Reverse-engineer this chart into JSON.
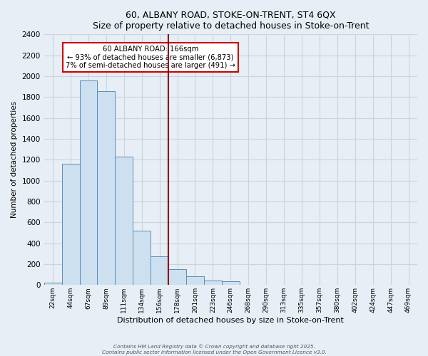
{
  "title": "60, ALBANY ROAD, STOKE-ON-TRENT, ST4 6QX",
  "subtitle": "Size of property relative to detached houses in Stoke-on-Trent",
  "xlabel": "Distribution of detached houses by size in Stoke-on-Trent",
  "ylabel": "Number of detached properties",
  "bar_labels": [
    "22sqm",
    "44sqm",
    "67sqm",
    "89sqm",
    "111sqm",
    "134sqm",
    "156sqm",
    "178sqm",
    "201sqm",
    "223sqm",
    "246sqm",
    "268sqm",
    "290sqm",
    "313sqm",
    "335sqm",
    "357sqm",
    "380sqm",
    "402sqm",
    "424sqm",
    "447sqm",
    "469sqm"
  ],
  "bar_values": [
    25,
    1160,
    1960,
    1855,
    1230,
    520,
    275,
    150,
    85,
    40,
    35,
    5,
    3,
    2,
    1,
    1,
    1,
    1,
    0,
    0,
    0
  ],
  "bar_color": "#cde0f0",
  "bar_edge_color": "#5b8db8",
  "vline_color": "#8b0000",
  "annotation_title": "60 ALBANY ROAD: 166sqm",
  "annotation_line1": "← 93% of detached houses are smaller (6,873)",
  "annotation_line2": "7% of semi-detached houses are larger (491) →",
  "annotation_box_color": "#ffffff",
  "annotation_box_edge": "#cc0000",
  "ylim": [
    0,
    2400
  ],
  "yticks": [
    0,
    200,
    400,
    600,
    800,
    1000,
    1200,
    1400,
    1600,
    1800,
    2000,
    2200,
    2400
  ],
  "background_color": "#e8eef5",
  "grid_color": "#c8d4e0",
  "footer1": "Contains HM Land Registry data © Crown copyright and database right 2025.",
  "footer2": "Contains public sector information licensed under the Open Government Licence v3.0."
}
